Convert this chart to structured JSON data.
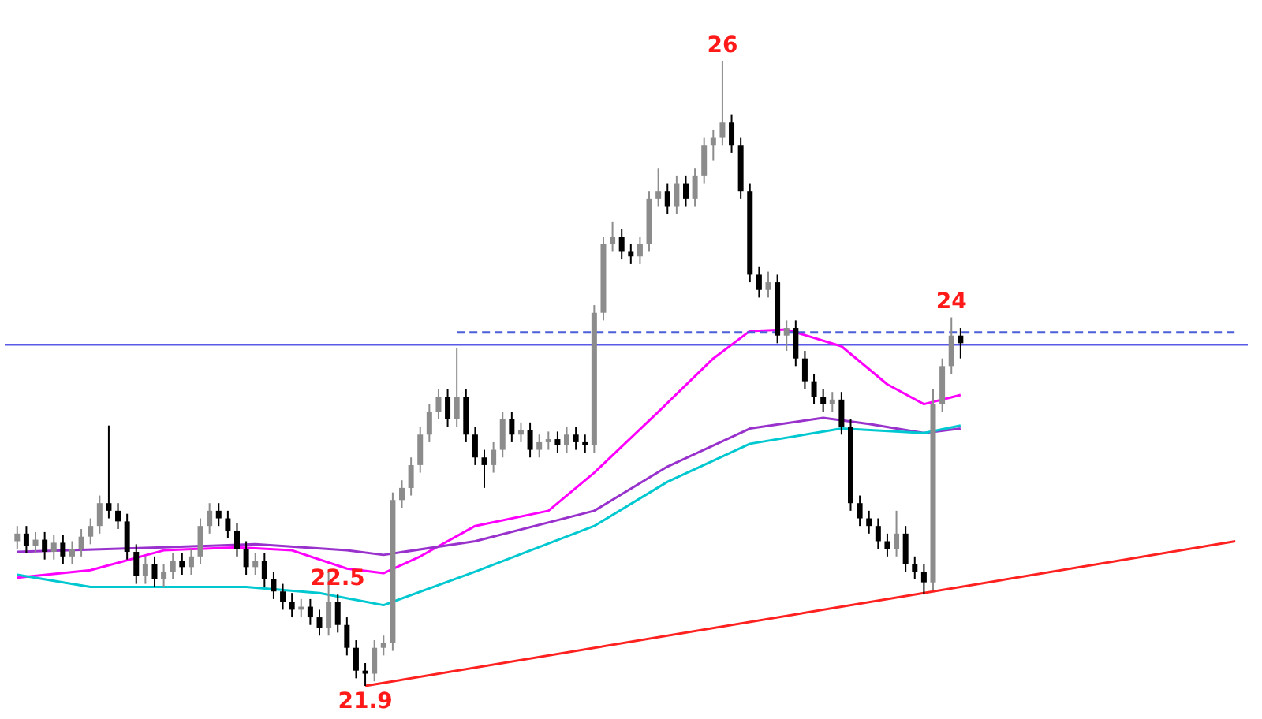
{
  "chart_data": {
    "type": "candlestick",
    "categories": [
      null,
      null,
      null,
      null,
      null,
      null,
      null,
      null,
      null,
      null,
      null,
      null,
      null,
      null,
      null,
      null,
      null,
      null,
      null,
      null,
      null,
      null,
      null,
      null,
      null,
      null,
      null,
      null,
      null,
      null,
      null,
      null,
      null,
      null,
      null,
      null,
      null,
      null,
      null,
      null,
      null,
      null,
      null,
      null,
      null,
      null,
      null,
      null,
      null,
      null,
      null,
      null,
      null,
      null,
      null,
      null,
      null,
      null,
      null,
      null,
      null,
      null,
      null,
      null,
      null,
      null,
      null,
      null,
      null,
      null,
      null,
      null,
      null,
      null,
      null,
      null,
      null,
      null,
      null,
      null,
      null,
      null,
      null,
      null,
      null,
      null,
      null,
      null,
      null,
      null,
      null,
      null,
      null,
      null,
      null,
      null,
      null,
      null,
      null,
      null,
      null,
      null,
      null,
      null,
      null,
      null,
      null,
      null,
      null,
      null,
      null,
      null,
      null,
      null,
      null,
      null,
      null,
      null,
      null,
      null,
      null,
      null,
      null,
      null,
      null,
      null,
      null,
      null,
      null,
      null,
      null,
      null,
      null,
      null
    ],
    "series": [
      {
        "ohlc": [
          [
            22.85,
            22.95,
            22.8,
            22.9
          ],
          [
            22.9,
            22.95,
            22.77,
            22.82
          ],
          [
            22.82,
            22.91,
            22.77,
            22.86
          ],
          [
            22.86,
            22.91,
            22.73,
            22.78
          ],
          [
            22.78,
            22.89,
            22.73,
            22.84
          ],
          [
            22.84,
            22.89,
            22.7,
            22.75
          ],
          [
            22.75,
            22.85,
            22.7,
            22.8
          ],
          [
            22.8,
            22.93,
            22.75,
            22.88
          ],
          [
            22.88,
            23.0,
            22.83,
            22.95
          ],
          [
            22.95,
            23.15,
            22.9,
            23.1
          ],
          [
            23.1,
            23.61,
            23.0,
            23.05
          ],
          [
            23.05,
            23.1,
            22.93,
            22.98
          ],
          [
            22.98,
            23.03,
            22.73,
            22.78
          ],
          [
            22.78,
            22.83,
            22.57,
            22.62
          ],
          [
            22.62,
            22.75,
            22.57,
            22.7
          ],
          [
            22.7,
            22.75,
            22.55,
            22.6
          ],
          [
            22.6,
            22.7,
            22.55,
            22.65
          ],
          [
            22.65,
            22.77,
            22.6,
            22.72
          ],
          [
            22.72,
            22.77,
            22.63,
            22.68
          ],
          [
            22.68,
            22.8,
            22.63,
            22.75
          ],
          [
            22.75,
            23.0,
            22.7,
            22.95
          ],
          [
            22.95,
            23.1,
            22.9,
            23.05
          ],
          [
            23.05,
            23.1,
            22.95,
            23.0
          ],
          [
            23.0,
            23.05,
            22.87,
            22.92
          ],
          [
            22.92,
            22.97,
            22.75,
            22.8
          ],
          [
            22.8,
            22.85,
            22.63,
            22.68
          ],
          [
            22.68,
            22.77,
            22.63,
            22.72
          ],
          [
            22.72,
            22.77,
            22.55,
            22.6
          ],
          [
            22.6,
            22.65,
            22.47,
            22.52
          ],
          [
            22.52,
            22.57,
            22.4,
            22.45
          ],
          [
            22.45,
            22.51,
            22.35,
            22.4
          ],
          [
            22.4,
            22.47,
            22.35,
            22.42
          ],
          [
            22.42,
            22.47,
            22.3,
            22.35
          ],
          [
            22.35,
            22.4,
            22.23,
            22.28
          ],
          [
            22.28,
            22.65,
            22.23,
            22.45
          ],
          [
            22.45,
            22.5,
            22.25,
            22.3
          ],
          [
            22.3,
            22.35,
            22.1,
            22.15
          ],
          [
            22.15,
            22.2,
            21.95,
            22.0
          ],
          [
            22.0,
            22.05,
            21.9,
            21.98
          ],
          [
            21.98,
            22.2,
            21.93,
            22.15
          ],
          [
            22.15,
            22.23,
            22.1,
            22.18
          ],
          [
            22.18,
            23.17,
            22.13,
            23.12
          ],
          [
            23.12,
            23.25,
            23.07,
            23.2
          ],
          [
            23.2,
            23.4,
            23.15,
            23.35
          ],
          [
            23.35,
            23.6,
            23.3,
            23.55
          ],
          [
            23.55,
            23.75,
            23.5,
            23.7
          ],
          [
            23.7,
            23.85,
            23.65,
            23.8
          ],
          [
            23.8,
            23.85,
            23.6,
            23.65
          ],
          [
            23.65,
            24.12,
            23.6,
            23.8
          ],
          [
            23.8,
            23.85,
            23.5,
            23.55
          ],
          [
            23.55,
            23.6,
            23.35,
            23.4
          ],
          [
            23.4,
            23.45,
            23.2,
            23.35
          ],
          [
            23.35,
            23.5,
            23.3,
            23.45
          ],
          [
            23.45,
            23.7,
            23.4,
            23.65
          ],
          [
            23.65,
            23.7,
            23.5,
            23.55
          ],
          [
            23.55,
            23.63,
            23.5,
            23.58
          ],
          [
            23.58,
            23.63,
            23.4,
            23.45
          ],
          [
            23.45,
            23.55,
            23.4,
            23.5
          ],
          [
            23.5,
            23.57,
            23.45,
            23.52
          ],
          [
            23.52,
            23.57,
            23.43,
            23.48
          ],
          [
            23.48,
            23.6,
            23.43,
            23.55
          ],
          [
            23.55,
            23.6,
            23.45,
            23.5
          ],
          [
            23.5,
            23.55,
            23.43,
            23.48
          ],
          [
            23.48,
            24.4,
            23.43,
            24.35
          ],
          [
            24.35,
            24.85,
            24.3,
            24.8
          ],
          [
            24.8,
            24.95,
            24.75,
            24.85
          ],
          [
            24.85,
            24.9,
            24.7,
            24.75
          ],
          [
            24.75,
            24.8,
            24.67,
            24.72
          ],
          [
            24.72,
            24.85,
            24.67,
            24.8
          ],
          [
            24.8,
            25.15,
            24.75,
            25.1
          ],
          [
            25.1,
            25.3,
            25.05,
            25.15
          ],
          [
            25.15,
            25.2,
            25.0,
            25.05
          ],
          [
            25.05,
            25.25,
            25.0,
            25.2
          ],
          [
            25.2,
            25.25,
            25.05,
            25.1
          ],
          [
            25.1,
            25.3,
            25.05,
            25.25
          ],
          [
            25.25,
            25.5,
            25.2,
            25.45
          ],
          [
            25.45,
            25.55,
            25.35,
            25.5
          ],
          [
            25.5,
            26.0,
            25.45,
            25.6
          ],
          [
            25.6,
            25.65,
            25.4,
            25.45
          ],
          [
            25.45,
            25.5,
            25.1,
            25.15
          ],
          [
            25.15,
            25.2,
            24.55,
            24.6
          ],
          [
            24.6,
            24.65,
            24.45,
            24.5
          ],
          [
            24.5,
            24.62,
            24.45,
            24.55
          ],
          [
            24.55,
            24.6,
            24.15,
            24.2
          ],
          [
            24.2,
            24.3,
            24.1,
            24.25
          ],
          [
            24.25,
            24.3,
            24.0,
            24.05
          ],
          [
            24.05,
            24.1,
            23.85,
            23.9
          ],
          [
            23.9,
            23.95,
            23.75,
            23.8
          ],
          [
            23.8,
            23.85,
            23.7,
            23.75
          ],
          [
            23.75,
            23.83,
            23.7,
            23.78
          ],
          [
            23.78,
            23.83,
            23.55,
            23.6
          ],
          [
            23.6,
            23.65,
            23.05,
            23.1
          ],
          [
            23.1,
            23.15,
            22.95,
            23.0
          ],
          [
            23.0,
            23.05,
            22.9,
            22.95
          ],
          [
            22.95,
            23.0,
            22.8,
            22.85
          ],
          [
            22.85,
            22.9,
            22.75,
            22.8
          ],
          [
            22.8,
            23.05,
            22.75,
            22.9
          ],
          [
            22.9,
            22.95,
            22.65,
            22.7
          ],
          [
            22.7,
            22.75,
            22.6,
            22.65
          ],
          [
            22.65,
            22.7,
            22.5,
            22.58
          ],
          [
            22.58,
            23.85,
            22.53,
            23.75
          ],
          [
            23.75,
            24.05,
            23.7,
            24.0
          ],
          [
            24.0,
            24.32,
            23.95,
            24.2
          ],
          [
            24.2,
            24.25,
            24.05,
            24.15
          ],
          null,
          null,
          null,
          null,
          null,
          null,
          null,
          null,
          null,
          null,
          null,
          null,
          null,
          null,
          null,
          null,
          null,
          null,
          null,
          null,
          null,
          null,
          null,
          null,
          null,
          null,
          null,
          null,
          null,
          null
        ],
        "colors": [
          "#8c8c8c",
          "#000000",
          "#8c8c8c",
          "#000000",
          "#8c8c8c",
          "#000000",
          "#8c8c8c",
          "#8c8c8c",
          "#8c8c8c",
          "#8c8c8c",
          "#000000",
          "#000000",
          "#000000",
          "#000000",
          "#8c8c8c",
          "#000000",
          "#8c8c8c",
          "#8c8c8c",
          "#000000",
          "#8c8c8c",
          "#8c8c8c",
          "#8c8c8c",
          "#000000",
          "#000000",
          "#000000",
          "#000000",
          "#8c8c8c",
          "#000000",
          "#000000",
          "#000000",
          "#000000",
          "#8c8c8c",
          "#000000",
          "#000000",
          "#8c8c8c",
          "#000000",
          "#000000",
          "#000000",
          "#000000",
          "#8c8c8c",
          "#8c8c8c",
          "#8c8c8c",
          "#8c8c8c",
          "#8c8c8c",
          "#8c8c8c",
          "#8c8c8c",
          "#8c8c8c",
          "#000000",
          "#8c8c8c",
          "#000000",
          "#000000",
          "#000000",
          "#8c8c8c",
          "#8c8c8c",
          "#000000",
          "#8c8c8c",
          "#000000",
          "#8c8c8c",
          "#8c8c8c",
          "#000000",
          "#8c8c8c",
          "#000000",
          "#000000",
          "#8c8c8c",
          "#8c8c8c",
          "#8c8c8c",
          "#000000",
          "#000000",
          "#8c8c8c",
          "#8c8c8c",
          "#8c8c8c",
          "#000000",
          "#8c8c8c",
          "#000000",
          "#8c8c8c",
          "#8c8c8c",
          "#8c8c8c",
          "#8c8c8c",
          "#000000",
          "#000000",
          "#000000",
          "#000000",
          "#8c8c8c",
          "#000000",
          "#8c8c8c",
          "#000000",
          "#000000",
          "#000000",
          "#000000",
          "#8c8c8c",
          "#000000",
          "#000000",
          "#000000",
          "#000000",
          "#000000",
          "#000000",
          "#8c8c8c",
          "#000000",
          "#000000",
          "#000000",
          "#8c8c8c",
          "#8c8c8c",
          "#8c8c8c",
          "#000000",
          null,
          null,
          null,
          null,
          null,
          null,
          null,
          null,
          null,
          null,
          null,
          null,
          null,
          null,
          null,
          null,
          null,
          null,
          null,
          null,
          null,
          null,
          null,
          null,
          null,
          null,
          null,
          null,
          null,
          null
        ]
      },
      {
        "type": "line",
        "color": "#ff00ff",
        "values": [
          22.61,
          null,
          null,
          null,
          null,
          null,
          null,
          null,
          22.66,
          null,
          null,
          null,
          null,
          null,
          null,
          null,
          22.79,
          null,
          null,
          null,
          null,
          null,
          null,
          null,
          22.81,
          null,
          null,
          null,
          null,
          null,
          22.79,
          null,
          null,
          null,
          null,
          null,
          22.67,
          null,
          null,
          null,
          22.64,
          null,
          null,
          null,
          22.75,
          null,
          null,
          null,
          null,
          null,
          22.95,
          null,
          null,
          null,
          null,
          null,
          null,
          null,
          23.05,
          null,
          null,
          null,
          null,
          23.3,
          null,
          null,
          null,
          null,
          null,
          null,
          23.7,
          null,
          null,
          null,
          null,
          null,
          24.05,
          null,
          null,
          null,
          24.23,
          null,
          null,
          null,
          24.24,
          null,
          null,
          null,
          null,
          null,
          24.13,
          null,
          null,
          null,
          null,
          23.88,
          null,
          null,
          null,
          23.75,
          null,
          null,
          null,
          23.81,
          null,
          null,
          null,
          null,
          null,
          null,
          null,
          null,
          null,
          null,
          null,
          null,
          null,
          null,
          null,
          null,
          null,
          null,
          null,
          null,
          null,
          null,
          null,
          null,
          null,
          null,
          null,
          null,
          null,
          null
        ]
      },
      {
        "type": "line",
        "color": "#9932cc",
        "values": [
          22.78,
          null,
          null,
          null,
          null,
          null,
          null,
          null,
          null,
          null,
          null,
          null,
          null,
          null,
          null,
          null,
          22.81,
          null,
          null,
          null,
          null,
          null,
          null,
          null,
          null,
          null,
          22.83,
          null,
          null,
          null,
          null,
          null,
          null,
          null,
          null,
          null,
          22.79,
          null,
          null,
          null,
          22.76,
          null,
          null,
          null,
          null,
          null,
          null,
          null,
          null,
          null,
          22.85,
          null,
          null,
          null,
          null,
          null,
          null,
          null,
          null,
          null,
          null,
          null,
          null,
          23.05,
          null,
          null,
          null,
          null,
          null,
          null,
          null,
          23.34,
          null,
          null,
          null,
          null,
          null,
          null,
          null,
          null,
          23.59,
          null,
          null,
          null,
          null,
          null,
          null,
          null,
          23.66,
          null,
          null,
          null,
          null,
          23.62,
          null,
          null,
          null,
          null,
          null,
          23.56,
          null,
          null,
          null,
          23.59,
          null,
          null,
          null,
          null,
          null,
          null,
          null,
          null,
          null,
          null,
          null,
          null,
          null,
          null,
          null,
          null,
          null,
          null,
          null,
          null,
          null,
          null,
          null,
          null,
          null,
          null,
          null,
          null,
          null,
          null
        ]
      },
      {
        "type": "line",
        "color": "#00c8d0",
        "values": [
          22.63,
          null,
          null,
          null,
          null,
          null,
          null,
          null,
          22.55,
          null,
          null,
          null,
          null,
          null,
          null,
          null,
          null,
          null,
          null,
          null,
          null,
          null,
          null,
          null,
          null,
          22.55,
          null,
          null,
          null,
          null,
          null,
          null,
          null,
          22.51,
          null,
          null,
          null,
          null,
          null,
          null,
          22.43,
          null,
          null,
          null,
          null,
          null,
          null,
          null,
          null,
          null,
          22.65,
          null,
          null,
          null,
          null,
          null,
          null,
          null,
          null,
          null,
          null,
          null,
          null,
          22.95,
          null,
          null,
          null,
          null,
          null,
          null,
          null,
          23.24,
          null,
          null,
          null,
          null,
          null,
          null,
          null,
          null,
          23.49,
          null,
          null,
          null,
          null,
          null,
          null,
          null,
          null,
          null,
          23.59,
          null,
          null,
          null,
          null,
          null,
          null,
          null,
          null,
          23.56,
          null,
          null,
          null,
          23.61,
          null,
          null,
          null,
          null,
          null,
          null,
          null,
          null,
          null,
          null,
          null,
          null,
          null,
          null,
          null,
          null,
          null,
          null,
          null,
          null,
          null,
          null,
          null,
          null,
          null,
          null,
          null,
          null,
          null,
          null
        ]
      },
      {
        "type": "line",
        "color": "#ff2020",
        "values": [
          null,
          null,
          null,
          null,
          null,
          null,
          null,
          null,
          null,
          null,
          null,
          null,
          null,
          null,
          null,
          null,
          null,
          null,
          null,
          null,
          null,
          null,
          null,
          null,
          null,
          null,
          null,
          null,
          null,
          null,
          null,
          null,
          null,
          null,
          null,
          null,
          null,
          null,
          21.9,
          null,
          null,
          null,
          null,
          null,
          null,
          null,
          null,
          null,
          null,
          null,
          null,
          null,
          null,
          null,
          null,
          null,
          null,
          null,
          null,
          null,
          null,
          null,
          null,
          null,
          null,
          null,
          null,
          null,
          null,
          null,
          null,
          null,
          null,
          null,
          null,
          null,
          null,
          null,
          null,
          null,
          null,
          null,
          null,
          null,
          null,
          null,
          null,
          null,
          null,
          null,
          null,
          null,
          null,
          null,
          null,
          null,
          null,
          null,
          null,
          null,
          null,
          null,
          null,
          null,
          null,
          null,
          null,
          null,
          null,
          null,
          null,
          null,
          null,
          null,
          null,
          null,
          null,
          null,
          null,
          null,
          null,
          null,
          null,
          null,
          null,
          null,
          null,
          null,
          null,
          null,
          null,
          null,
          null,
          22.85
        ]
      },
      {
        "type": "line",
        "color": "#4a5fd8",
        "line_style": "dashed",
        "values": [
          null,
          null,
          null,
          null,
          null,
          null,
          null,
          null,
          null,
          null,
          null,
          null,
          null,
          null,
          null,
          null,
          null,
          null,
          null,
          null,
          null,
          null,
          null,
          null,
          null,
          null,
          null,
          null,
          null,
          null,
          null,
          null,
          null,
          null,
          null,
          null,
          null,
          null,
          null,
          null,
          null,
          null,
          null,
          null,
          null,
          null,
          null,
          null,
          24.22,
          null,
          null,
          null,
          null,
          null,
          null,
          null,
          null,
          null,
          null,
          null,
          null,
          null,
          null,
          null,
          null,
          null,
          null,
          null,
          null,
          null,
          null,
          null,
          null,
          null,
          null,
          null,
          null,
          null,
          null,
          null,
          null,
          null,
          null,
          null,
          null,
          null,
          null,
          null,
          null,
          null,
          null,
          null,
          null,
          null,
          null,
          null,
          null,
          null,
          null,
          null,
          null,
          null,
          null,
          null,
          null,
          null,
          null,
          null,
          null,
          null,
          null,
          null,
          null,
          null,
          null,
          null,
          null,
          null,
          null,
          null,
          null,
          null,
          null,
          null,
          null,
          null,
          null,
          null,
          null,
          null,
          null,
          null,
          null,
          24.22
        ]
      }
    ],
    "ref_lines": [
      {
        "axis": "y",
        "value": 24.14,
        "color": "#5a5ae6"
      }
    ],
    "annotations": [
      {
        "text": "26",
        "y": 26.0
      },
      {
        "text": "24",
        "y": 24.32
      },
      {
        "text": "22.5",
        "y": 22.5
      },
      {
        "text": "21.9",
        "y": 21.9
      }
    ],
    "tick_labels": false
  }
}
